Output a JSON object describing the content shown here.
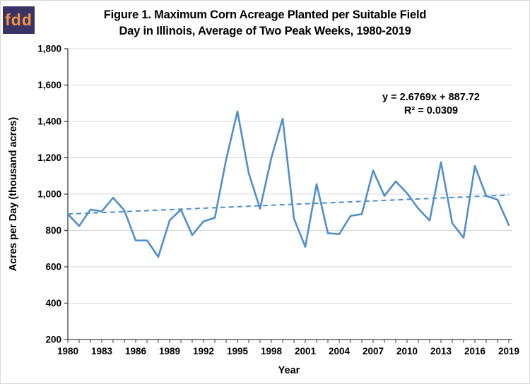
{
  "logo": {
    "text": "fdd",
    "bg_color": "#3a3464",
    "text_color": "#f49441"
  },
  "title_line1": "Figure 1. Maximum Corn Acreage Planted per Suitable Field",
  "title_line2": "Day in Illinois, Average of Two Peak Weeks, 1980-2019",
  "annotation": {
    "equation": "y = 2.6769x + 887.72",
    "r_squared": "R² = 0.0309"
  },
  "chart_data": {
    "type": "line",
    "title": "Figure 1. Maximum Corn Acreage Planted per Suitable Field Day in Illinois, Average of Two Peak Weeks, 1980-2019",
    "xlabel": "Year",
    "ylabel": "Acres per Day (thousand acres)",
    "x": [
      1980,
      1981,
      1982,
      1983,
      1984,
      1985,
      1986,
      1987,
      1988,
      1989,
      1990,
      1991,
      1992,
      1993,
      1994,
      1995,
      1996,
      1997,
      1998,
      1999,
      2000,
      2001,
      2002,
      2003,
      2004,
      2005,
      2006,
      2007,
      2008,
      2009,
      2010,
      2011,
      2012,
      2013,
      2014,
      2015,
      2016,
      2017,
      2018,
      2019
    ],
    "series": [
      {
        "name": "Maximum corn acreage planted per suitable field day",
        "values": [
          890,
          825,
          915,
          905,
          980,
          910,
          745,
          745,
          655,
          855,
          915,
          775,
          850,
          870,
          1190,
          1455,
          1115,
          920,
          1200,
          1415,
          865,
          710,
          1055,
          785,
          780,
          880,
          890,
          1130,
          990,
          1070,
          1005,
          920,
          855,
          1175,
          840,
          760,
          1155,
          990,
          970,
          830
        ]
      }
    ],
    "trendline": {
      "slope": 2.6769,
      "intercept": 887.72,
      "equation": "y = 2.6769x + 887.72",
      "r2": "R² = 0.0309",
      "style": "dashed"
    },
    "ylim": [
      200,
      1800
    ],
    "ytick_step": 200,
    "ytick_labels": [
      "200",
      "400",
      "600",
      "800",
      "1,000",
      "1,200",
      "1,400",
      "1,600",
      "1,800"
    ],
    "xtick_labels": [
      "1980",
      "1983",
      "1986",
      "1989",
      "1992",
      "1995",
      "1998",
      "2001",
      "2004",
      "2007",
      "2010",
      "2013",
      "2016",
      "2019"
    ],
    "grid": "horizontal",
    "legend": "none",
    "colors": {
      "series": "#4f8fcc",
      "trendline": "#4f8fcc",
      "grid": "#d9d9d9",
      "axis": "#404040"
    }
  }
}
